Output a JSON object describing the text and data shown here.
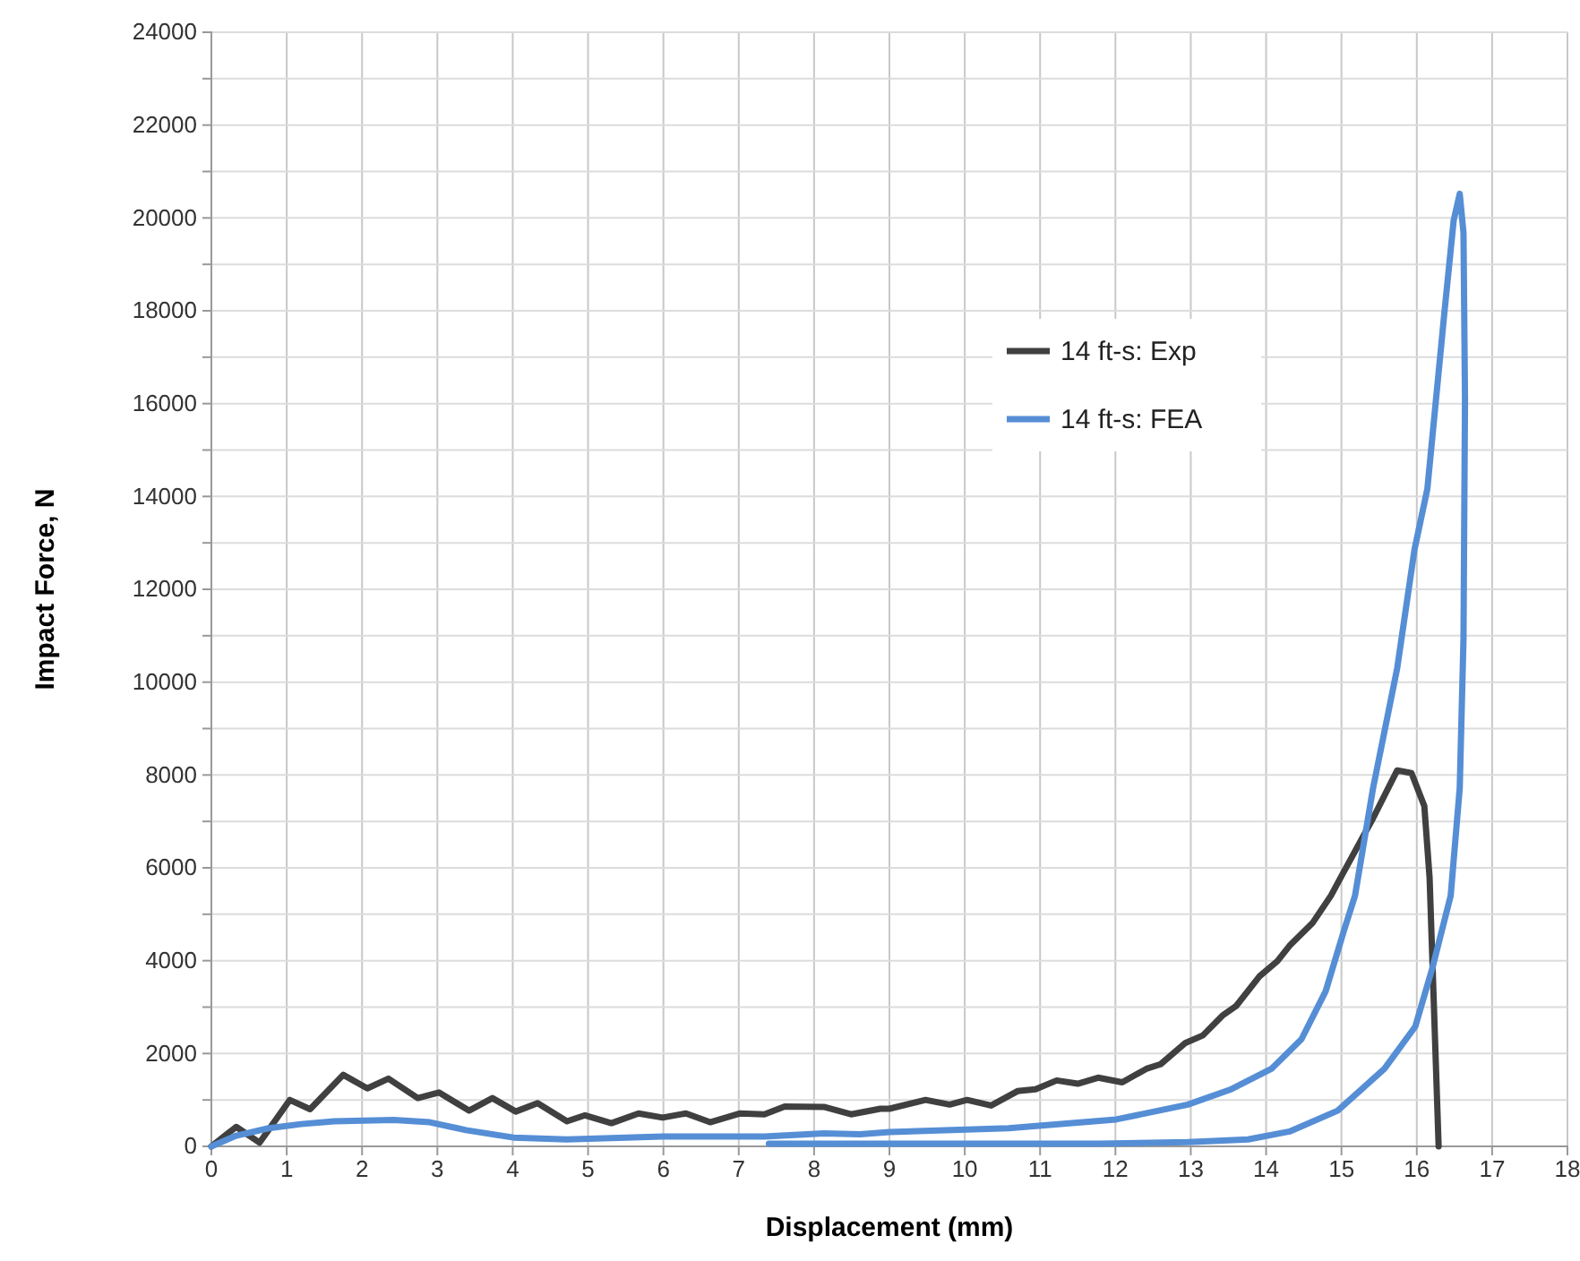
{
  "chart_data": {
    "type": "line",
    "xlabel": "Displacement (mm)",
    "ylabel": "Impact Force, N",
    "xlim": [
      0,
      18
    ],
    "xticks": [
      0,
      1,
      2,
      3,
      4,
      5,
      6,
      7,
      8,
      9,
      10,
      11,
      12,
      13,
      14,
      15,
      16,
      17,
      18
    ],
    "ylim": [
      0,
      24000
    ],
    "yticks": [
      0,
      {
        "value": 1000,
        "label": null
      },
      2000,
      {
        "value": 3000,
        "label": null
      },
      4000,
      {
        "value": 5000,
        "label": null
      },
      6000,
      {
        "value": 7000,
        "label": null
      },
      8000,
      {
        "value": 9000,
        "label": null
      },
      10000,
      {
        "value": 11000,
        "label": null
      },
      12000,
      {
        "value": 13000,
        "label": null
      },
      14000,
      {
        "value": 15000,
        "label": null
      },
      16000,
      {
        "value": 17000,
        "label": null
      },
      18000,
      {
        "value": 19000,
        "label": null
      },
      20000,
      {
        "value": 21000,
        "label": null
      },
      22000,
      {
        "value": 23000,
        "label": null
      },
      24000
    ],
    "grid": true,
    "legend": "right",
    "marker": "none",
    "line_style": "solid",
    "series": [
      {
        "name": "14 ft-s: Exp",
        "color": "#404040",
        "x": [
          0,
          0.33,
          0.64,
          1.04,
          1.31,
          1.75,
          2.07,
          2.35,
          2.74,
          3.02,
          3.42,
          3.73,
          4.04,
          4.33,
          4.72,
          4.96,
          5.31,
          5.67,
          5.99,
          6.3,
          6.62,
          7.02,
          7.34,
          7.61,
          8.13,
          8.49,
          8.88,
          9.0,
          9.48,
          9.8,
          10.03,
          10.35,
          10.7,
          10.94,
          11.22,
          11.5,
          11.77,
          12.09,
          12.41,
          12.6,
          12.93,
          13.16,
          13.43,
          13.6,
          13.91,
          14.15,
          14.31,
          14.62,
          14.86,
          15.03,
          15.42,
          15.74,
          15.93,
          16.1,
          16.17,
          16.29
        ],
        "values": [
          0,
          420,
          80,
          1000,
          800,
          1540,
          1250,
          1460,
          1040,
          1160,
          770,
          1040,
          750,
          930,
          540,
          670,
          500,
          710,
          620,
          710,
          520,
          710,
          690,
          860,
          850,
          690,
          810,
          810,
          1000,
          900,
          1000,
          880,
          1190,
          1230,
          1420,
          1350,
          1480,
          1380,
          1670,
          1770,
          2230,
          2390,
          2830,
          3020,
          3660,
          3990,
          4320,
          4820,
          5400,
          5910,
          7070,
          8100,
          8040,
          7330,
          5790,
          0
        ]
      },
      {
        "name": "14 ft-s: FEA",
        "color": "#558ed5",
        "x": [
          0,
          0.33,
          0.76,
          1.19,
          1.63,
          2.42,
          2.9,
          3.38,
          4.01,
          4.72,
          5.99,
          7.34,
          8.13,
          8.61,
          9.0,
          10.58,
          12.01,
          12.96,
          13.52,
          14.07,
          14.47,
          14.79,
          15.03,
          15.18,
          15.42,
          15.74,
          15.97,
          16.14,
          16.37,
          16.49,
          16.57,
          16.62,
          16.64,
          16.62,
          16.57,
          16.45,
          16.21,
          15.98,
          15.57,
          14.95,
          14.31,
          13.76,
          12.96,
          11.77,
          7.4
        ],
        "values": [
          0,
          230,
          390,
          480,
          540,
          570,
          520,
          350,
          190,
          150,
          210,
          210,
          280,
          260,
          310,
          390,
          580,
          900,
          1220,
          1670,
          2310,
          3340,
          4630,
          5400,
          7720,
          10300,
          12860,
          14160,
          18020,
          19950,
          20520,
          19680,
          16090,
          10930,
          7720,
          5400,
          3860,
          2580,
          1670,
          770,
          320,
          150,
          90,
          60,
          60
        ]
      }
    ]
  }
}
